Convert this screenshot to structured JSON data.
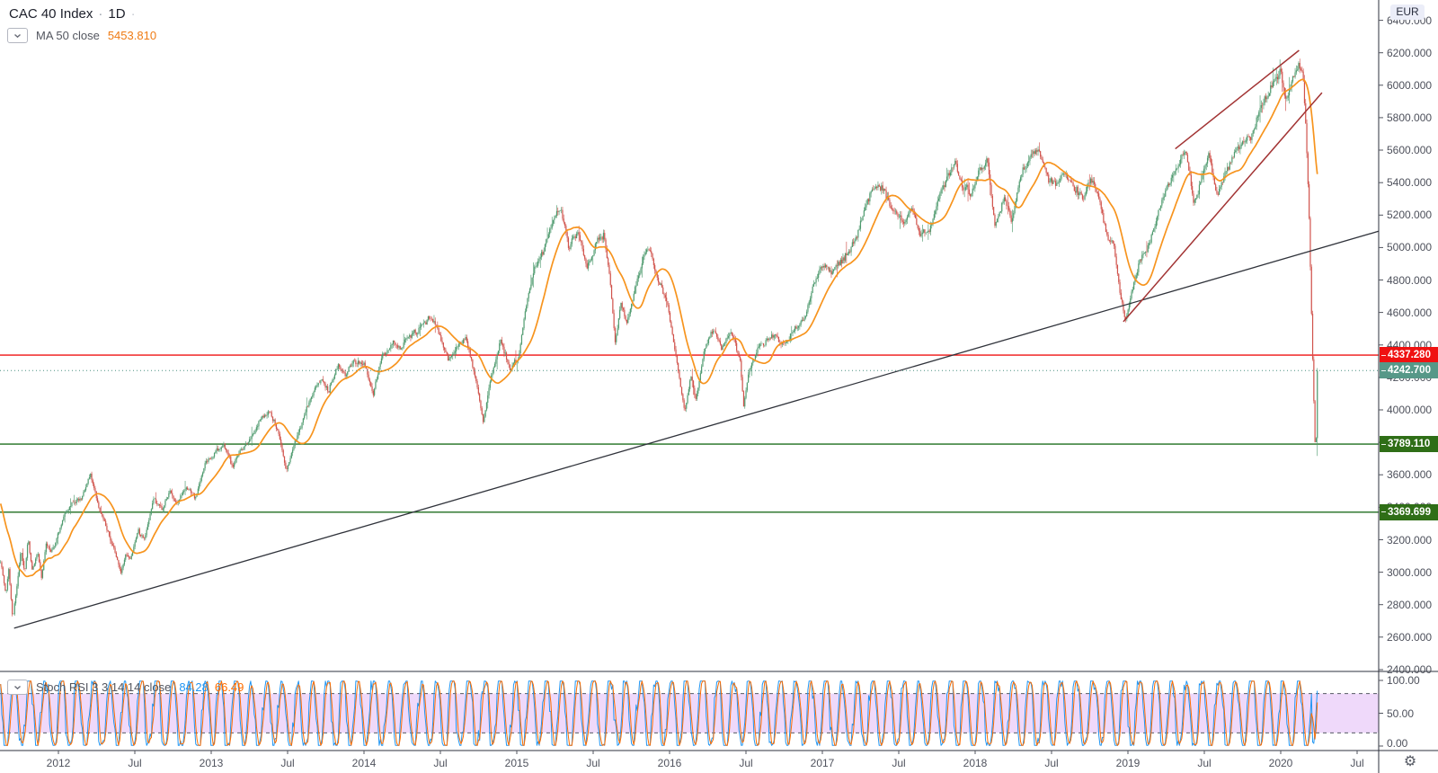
{
  "header": {
    "symbol": "CAC 40 Index",
    "sep": "·",
    "interval": "1D",
    "sep2": "·",
    "ma_label": "MA 50 close",
    "ma_value": "5453.810"
  },
  "stoch_legend": {
    "label": "Stoch RSI 3 3 14 14 close",
    "k_value": "84.28",
    "d_value": "66.49"
  },
  "price_axis": {
    "currency": "EUR",
    "ticks": [
      "6400.000",
      "6200.000",
      "6000.000",
      "5800.000",
      "5600.000",
      "5400.000",
      "5200.000",
      "5000.000",
      "4800.000",
      "4600.000",
      "4400.000",
      "4200.000",
      "4000.000",
      "3800.000",
      "3600.000",
      "3400.000",
      "3200.000",
      "3000.000",
      "2800.000",
      "2600.000",
      "2400.000"
    ],
    "tags": [
      {
        "label": "4337.280",
        "price": 4337.28,
        "bg": "#ef1212"
      },
      {
        "label": "4242.700",
        "price": 4242.7,
        "bg": "#569888"
      },
      {
        "label": "3789.110",
        "price": 3789.11,
        "bg": "#2f6e17"
      },
      {
        "label": "3369.699",
        "price": 3369.699,
        "bg": "#2f6e17"
      }
    ]
  },
  "stoch_axis": {
    "ticks": [
      "100.00",
      "50.00",
      "0.00"
    ]
  },
  "time_axis": {
    "ticks": [
      {
        "label": "2012",
        "t": 2012
      },
      {
        "label": "Jul",
        "t": 2012.5
      },
      {
        "label": "2013",
        "t": 2013
      },
      {
        "label": "Jul",
        "t": 2013.5
      },
      {
        "label": "2014",
        "t": 2014
      },
      {
        "label": "Jul",
        "t": 2014.5
      },
      {
        "label": "2015",
        "t": 2015
      },
      {
        "label": "Jul",
        "t": 2015.5
      },
      {
        "label": "2016",
        "t": 2016
      },
      {
        "label": "Jul",
        "t": 2016.5
      },
      {
        "label": "2017",
        "t": 2017
      },
      {
        "label": "Jul",
        "t": 2017.5
      },
      {
        "label": "2018",
        "t": 2018
      },
      {
        "label": "Jul",
        "t": 2018.5
      },
      {
        "label": "2019",
        "t": 2019
      },
      {
        "label": "Jul",
        "t": 2019.5
      },
      {
        "label": "2020",
        "t": 2020
      },
      {
        "label": "Jul",
        "t": 2020.5
      }
    ]
  },
  "footer": {
    "gear_icon": "⚙"
  },
  "chart_data": {
    "type": "candlestick",
    "symbol": "CAC 40 Index",
    "interval": "1D",
    "currency": "EUR",
    "last_close": 4242.7,
    "ma_period": 50,
    "ma_last": 5453.81,
    "y_axis": {
      "min": 2400,
      "max": 6524,
      "tick_step": 200
    },
    "x_axis": {
      "start": 2011.62,
      "end": 2020.64
    },
    "colors": {
      "up": "#4e9a6e",
      "down": "#d0524b",
      "ma": "#f7941e",
      "stoch_k": "#2196f3",
      "stoch_d": "#ff6d00",
      "stoch_band": "#efd9fa",
      "stoch_dash": "#565a64",
      "red_level": "#ef1212",
      "last_price": "#4a9080",
      "green_level": "#1f6e1f",
      "wedge": "#a23333",
      "trend": "#30333b",
      "axis_line": "#2e323c"
    },
    "horizontal_levels": [
      {
        "price": 4337.28,
        "style": "solid",
        "color_key": "red_level"
      },
      {
        "price": 4242.7,
        "style": "dotted",
        "color_key": "last_price",
        "role": "last-price-line"
      },
      {
        "price": 3789.11,
        "style": "solid",
        "color_key": "green_level"
      },
      {
        "price": 3369.699,
        "style": "solid",
        "color_key": "green_level"
      }
    ],
    "trend_lines": [
      {
        "name": "long-term-support",
        "t1": 2011.71,
        "p1": 2655,
        "t2": 2020.64,
        "p2": 5100,
        "color_key": "trend"
      },
      {
        "name": "wedge-upper",
        "t1": 2019.31,
        "p1": 5608,
        "t2": 2020.12,
        "p2": 6215,
        "color_key": "wedge"
      },
      {
        "name": "wedge-lower",
        "t1": 2018.97,
        "p1": 4543,
        "t2": 2020.27,
        "p2": 5954,
        "color_key": "wedge"
      }
    ],
    "indicator": {
      "name": "Stoch RSI",
      "params": [
        3,
        3,
        14,
        14
      ],
      "source": "close",
      "k_last": 84.28,
      "d_last": 66.49,
      "overbought": 80,
      "oversold": 20,
      "range": [
        0,
        100
      ]
    },
    "price_anchors": [
      [
        2011.62,
        3090
      ],
      [
        2011.655,
        2870
      ],
      [
        2011.675,
        3020
      ],
      [
        2011.7,
        2720
      ],
      [
        2011.73,
        2920
      ],
      [
        2011.755,
        3140
      ],
      [
        2011.78,
        2980
      ],
      [
        2011.8,
        3190
      ],
      [
        2011.83,
        3000
      ],
      [
        2011.865,
        3120
      ],
      [
        2011.89,
        2960
      ],
      [
        2011.92,
        3180
      ],
      [
        2011.95,
        3120
      ],
      [
        2011.98,
        3170
      ],
      [
        2012.03,
        3320
      ],
      [
        2012.09,
        3420
      ],
      [
        2012.15,
        3450
      ],
      [
        2012.21,
        3580
      ],
      [
        2012.26,
        3410
      ],
      [
        2012.31,
        3290
      ],
      [
        2012.36,
        3160
      ],
      [
        2012.41,
        2990
      ],
      [
        2012.44,
        3100
      ],
      [
        2012.47,
        3060
      ],
      [
        2012.52,
        3250
      ],
      [
        2012.56,
        3180
      ],
      [
        2012.62,
        3440
      ],
      [
        2012.68,
        3380
      ],
      [
        2012.73,
        3480
      ],
      [
        2012.78,
        3420
      ],
      [
        2012.84,
        3530
      ],
      [
        2012.9,
        3460
      ],
      [
        2012.96,
        3660
      ],
      [
        2013.02,
        3720
      ],
      [
        2013.08,
        3780
      ],
      [
        2013.14,
        3640
      ],
      [
        2013.2,
        3750
      ],
      [
        2013.26,
        3830
      ],
      [
        2013.33,
        3950
      ],
      [
        2013.38,
        4010
      ],
      [
        2013.44,
        3880
      ],
      [
        2013.49,
        3640
      ],
      [
        2013.54,
        3800
      ],
      [
        2013.6,
        3960
      ],
      [
        2013.66,
        4090
      ],
      [
        2013.72,
        4180
      ],
      [
        2013.77,
        4130
      ],
      [
        2013.83,
        4270
      ],
      [
        2013.88,
        4220
      ],
      [
        2013.94,
        4290
      ],
      [
        2014.0,
        4280
      ],
      [
        2014.06,
        4120
      ],
      [
        2014.12,
        4370
      ],
      [
        2014.18,
        4420
      ],
      [
        2014.24,
        4380
      ],
      [
        2014.3,
        4460
      ],
      [
        2014.36,
        4520
      ],
      [
        2014.43,
        4590
      ],
      [
        2014.49,
        4480
      ],
      [
        2014.55,
        4310
      ],
      [
        2014.61,
        4400
      ],
      [
        2014.67,
        4420
      ],
      [
        2014.73,
        4160
      ],
      [
        2014.78,
        3920
      ],
      [
        2014.83,
        4190
      ],
      [
        2014.89,
        4390
      ],
      [
        2014.95,
        4270
      ],
      [
        2015.01,
        4300
      ],
      [
        2015.06,
        4640
      ],
      [
        2015.12,
        4900
      ],
      [
        2015.18,
        5010
      ],
      [
        2015.24,
        5190
      ],
      [
        2015.29,
        5260
      ],
      [
        2015.34,
        5010
      ],
      [
        2015.4,
        5130
      ],
      [
        2015.46,
        4880
      ],
      [
        2015.52,
        5040
      ],
      [
        2015.57,
        5080
      ],
      [
        2015.61,
        4810
      ],
      [
        2015.645,
        4400
      ],
      [
        2015.68,
        4640
      ],
      [
        2015.72,
        4500
      ],
      [
        2015.77,
        4680
      ],
      [
        2015.83,
        4920
      ],
      [
        2015.88,
        4960
      ],
      [
        2015.93,
        4740
      ],
      [
        2015.98,
        4660
      ],
      [
        2016.04,
        4340
      ],
      [
        2016.1,
        3990
      ],
      [
        2016.14,
        4220
      ],
      [
        2016.17,
        4080
      ],
      [
        2016.23,
        4380
      ],
      [
        2016.29,
        4480
      ],
      [
        2016.34,
        4370
      ],
      [
        2016.4,
        4480
      ],
      [
        2016.46,
        4310
      ],
      [
        2016.485,
        4020
      ],
      [
        2016.52,
        4240
      ],
      [
        2016.58,
        4390
      ],
      [
        2016.64,
        4440
      ],
      [
        2016.7,
        4470
      ],
      [
        2016.76,
        4420
      ],
      [
        2016.82,
        4480
      ],
      [
        2016.88,
        4530
      ],
      [
        2016.94,
        4740
      ],
      [
        2016.99,
        4870
      ],
      [
        2017.05,
        4840
      ],
      [
        2017.11,
        4900
      ],
      [
        2017.17,
        4980
      ],
      [
        2017.23,
        5090
      ],
      [
        2017.29,
        5290
      ],
      [
        2017.35,
        5380
      ],
      [
        2017.41,
        5340
      ],
      [
        2017.47,
        5230
      ],
      [
        2017.53,
        5130
      ],
      [
        2017.59,
        5200
      ],
      [
        2017.64,
        5070
      ],
      [
        2017.7,
        5130
      ],
      [
        2017.76,
        5330
      ],
      [
        2017.82,
        5460
      ],
      [
        2017.87,
        5520
      ],
      [
        2017.92,
        5380
      ],
      [
        2017.97,
        5330
      ],
      [
        2018.03,
        5480
      ],
      [
        2018.08,
        5540
      ],
      [
        2018.13,
        5120
      ],
      [
        2018.19,
        5300
      ],
      [
        2018.24,
        5170
      ],
      [
        2018.3,
        5420
      ],
      [
        2018.36,
        5550
      ],
      [
        2018.41,
        5600
      ],
      [
        2018.47,
        5460
      ],
      [
        2018.53,
        5400
      ],
      [
        2018.59,
        5500
      ],
      [
        2018.65,
        5420
      ],
      [
        2018.71,
        5340
      ],
      [
        2018.76,
        5460
      ],
      [
        2018.81,
        5320
      ],
      [
        2018.86,
        5090
      ],
      [
        2018.91,
        5010
      ],
      [
        2018.95,
        4720
      ],
      [
        2018.985,
        4580
      ],
      [
        2019.03,
        4780
      ],
      [
        2019.09,
        4970
      ],
      [
        2019.15,
        5090
      ],
      [
        2019.21,
        5260
      ],
      [
        2019.27,
        5410
      ],
      [
        2019.33,
        5510
      ],
      [
        2019.38,
        5590
      ],
      [
        2019.43,
        5290
      ],
      [
        2019.48,
        5450
      ],
      [
        2019.53,
        5610
      ],
      [
        2019.58,
        5340
      ],
      [
        2019.63,
        5470
      ],
      [
        2019.69,
        5590
      ],
      [
        2019.75,
        5670
      ],
      [
        2019.81,
        5700
      ],
      [
        2019.86,
        5830
      ],
      [
        2019.91,
        5920
      ],
      [
        2019.96,
        6010
      ],
      [
        2020.0,
        6050
      ],
      [
        2020.035,
        5880
      ],
      [
        2020.075,
        6020
      ],
      [
        2020.115,
        6100
      ],
      [
        2020.145,
        6050
      ],
      [
        2020.165,
        5720
      ],
      [
        2020.185,
        5220
      ],
      [
        2020.2,
        4640
      ],
      [
        2020.21,
        4280
      ],
      [
        2020.22,
        3940
      ],
      [
        2020.228,
        3680
      ],
      [
        2020.235,
        3920
      ],
      [
        2020.24,
        4120
      ],
      [
        2020.243,
        4242.7
      ]
    ]
  }
}
